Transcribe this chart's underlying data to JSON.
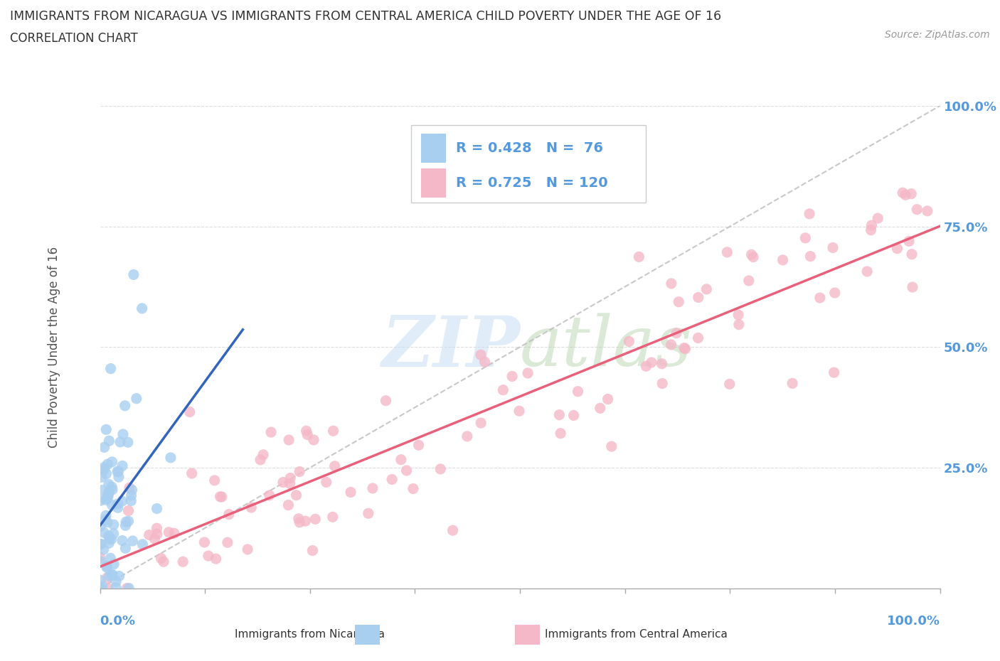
{
  "title": "IMMIGRANTS FROM NICARAGUA VS IMMIGRANTS FROM CENTRAL AMERICA CHILD POVERTY UNDER THE AGE OF 16",
  "subtitle": "CORRELATION CHART",
  "source": "Source: ZipAtlas.com",
  "ylabel": "Child Poverty Under the Age of 16",
  "watermark_zip": "ZIP",
  "watermark_atlas": "atlas",
  "legend_text1": "R = 0.428   N =  76",
  "legend_text2": "R = 0.725   N = 120",
  "color_nicaragua": "#A8CFF0",
  "color_nicaragua_line": "#3366BB",
  "color_central": "#F5B8C8",
  "color_central_line": "#E8607A",
  "color_diagonal": "#BBBBBB",
  "title_color": "#333333",
  "axis_label_color": "#5599DD",
  "background_color": "#FFFFFF",
  "grid_color": "#DDDDDD",
  "tick_color": "#AAAAAA"
}
